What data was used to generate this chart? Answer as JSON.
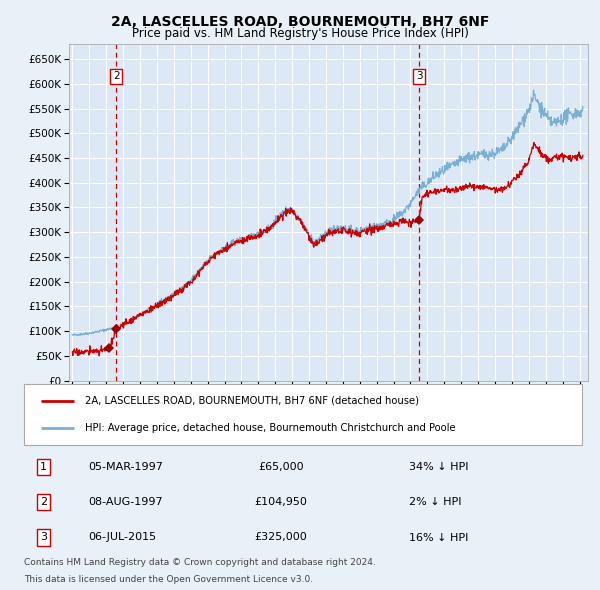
{
  "title": "2A, LASCELLES ROAD, BOURNEMOUTH, BH7 6NF",
  "subtitle": "Price paid vs. HM Land Registry's House Price Index (HPI)",
  "legend_property": "2A, LASCELLES ROAD, BOURNEMOUTH, BH7 6NF (detached house)",
  "legend_hpi": "HPI: Average price, detached house, Bournemouth Christchurch and Poole",
  "footer1": "Contains HM Land Registry data © Crown copyright and database right 2024.",
  "footer2": "This data is licensed under the Open Government Licence v3.0.",
  "table_rows": [
    {
      "num": "1",
      "date": "05-MAR-1997",
      "price": "£65,000",
      "pct": "34% ↓ HPI"
    },
    {
      "num": "2",
      "date": "08-AUG-1997",
      "price": "£104,950",
      "pct": "2% ↓ HPI"
    },
    {
      "num": "3",
      "date": "06-JUL-2015",
      "price": "£325,000",
      "pct": "16% ↓ HPI"
    }
  ],
  "vline1_x": 1997.6,
  "vline2_x": 2015.51,
  "t1_x": 1997.18,
  "t1_y": 65000,
  "t2_x": 1997.6,
  "t2_y": 104950,
  "t3_x": 2015.51,
  "t3_y": 325000,
  "ylim": [
    0,
    680000
  ],
  "xlim_start": 1994.8,
  "xlim_end": 2025.5,
  "background_color": "#e8f0f8",
  "plot_bg_color": "#dce8f5",
  "grid_color": "#ffffff",
  "property_line_color": "#cc0000",
  "hpi_line_color": "#7aafd4",
  "marker_color": "#990000",
  "vline_color": "#cc0000",
  "box_color": "#cc0000",
  "hpi_pts": [
    [
      1995.0,
      92000
    ],
    [
      1995.5,
      93500
    ],
    [
      1996.0,
      96000
    ],
    [
      1996.5,
      99000
    ],
    [
      1997.0,
      103000
    ],
    [
      1997.5,
      107000
    ],
    [
      1998.0,
      113000
    ],
    [
      1998.5,
      122000
    ],
    [
      1999.0,
      132000
    ],
    [
      1999.5,
      143000
    ],
    [
      2000.0,
      153000
    ],
    [
      2000.5,
      163000
    ],
    [
      2001.0,
      174000
    ],
    [
      2001.5,
      187000
    ],
    [
      2002.0,
      202000
    ],
    [
      2002.5,
      222000
    ],
    [
      2003.0,
      242000
    ],
    [
      2003.5,
      258000
    ],
    [
      2004.0,
      268000
    ],
    [
      2004.5,
      278000
    ],
    [
      2005.0,
      285000
    ],
    [
      2005.5,
      290000
    ],
    [
      2006.0,
      295000
    ],
    [
      2006.5,
      305000
    ],
    [
      2007.0,
      320000
    ],
    [
      2007.5,
      340000
    ],
    [
      2007.8,
      348000
    ],
    [
      2008.0,
      345000
    ],
    [
      2008.5,
      325000
    ],
    [
      2009.0,
      295000
    ],
    [
      2009.3,
      278000
    ],
    [
      2009.6,
      285000
    ],
    [
      2010.0,
      300000
    ],
    [
      2010.5,
      305000
    ],
    [
      2011.0,
      308000
    ],
    [
      2011.5,
      305000
    ],
    [
      2012.0,
      303000
    ],
    [
      2012.5,
      308000
    ],
    [
      2013.0,
      313000
    ],
    [
      2013.5,
      318000
    ],
    [
      2014.0,
      325000
    ],
    [
      2014.5,
      338000
    ],
    [
      2015.0,
      358000
    ],
    [
      2015.3,
      375000
    ],
    [
      2015.6,
      388000
    ],
    [
      2016.0,
      400000
    ],
    [
      2016.5,
      415000
    ],
    [
      2017.0,
      425000
    ],
    [
      2017.5,
      435000
    ],
    [
      2018.0,
      445000
    ],
    [
      2018.5,
      452000
    ],
    [
      2019.0,
      455000
    ],
    [
      2019.5,
      458000
    ],
    [
      2020.0,
      460000
    ],
    [
      2020.5,
      468000
    ],
    [
      2021.0,
      490000
    ],
    [
      2021.5,
      518000
    ],
    [
      2022.0,
      548000
    ],
    [
      2022.3,
      575000
    ],
    [
      2022.6,
      558000
    ],
    [
      2022.9,
      540000
    ],
    [
      2023.2,
      525000
    ],
    [
      2023.5,
      520000
    ],
    [
      2023.8,
      525000
    ],
    [
      2024.0,
      530000
    ],
    [
      2024.3,
      535000
    ],
    [
      2024.6,
      540000
    ],
    [
      2025.0,
      542000
    ],
    [
      2025.2,
      545000
    ]
  ],
  "prop_pts": [
    [
      1995.0,
      57000
    ],
    [
      1995.5,
      57500
    ],
    [
      1996.0,
      58500
    ],
    [
      1996.5,
      60000
    ],
    [
      1997.0,
      62000
    ],
    [
      1997.18,
      65000
    ],
    [
      1997.4,
      82000
    ],
    [
      1997.6,
      104950
    ],
    [
      1998.0,
      113000
    ],
    [
      1998.5,
      122000
    ],
    [
      1999.0,
      132000
    ],
    [
      1999.5,
      142000
    ],
    [
      2000.0,
      151000
    ],
    [
      2000.5,
      161000
    ],
    [
      2001.0,
      172000
    ],
    [
      2001.5,
      185000
    ],
    [
      2002.0,
      200000
    ],
    [
      2002.5,
      220000
    ],
    [
      2003.0,
      240000
    ],
    [
      2003.5,
      256000
    ],
    [
      2004.0,
      266000
    ],
    [
      2004.5,
      276000
    ],
    [
      2005.0,
      282000
    ],
    [
      2005.5,
      288000
    ],
    [
      2006.0,
      293000
    ],
    [
      2006.5,
      303000
    ],
    [
      2007.0,
      318000
    ],
    [
      2007.5,
      337000
    ],
    [
      2007.8,
      345000
    ],
    [
      2008.0,
      342000
    ],
    [
      2008.5,
      322000
    ],
    [
      2009.0,
      290000
    ],
    [
      2009.3,
      274000
    ],
    [
      2009.6,
      280000
    ],
    [
      2010.0,
      295000
    ],
    [
      2010.5,
      300000
    ],
    [
      2011.0,
      303000
    ],
    [
      2011.5,
      300000
    ],
    [
      2012.0,
      298000
    ],
    [
      2012.5,
      303000
    ],
    [
      2013.0,
      308000
    ],
    [
      2013.5,
      313000
    ],
    [
      2014.0,
      318000
    ],
    [
      2014.5,
      322000
    ],
    [
      2015.0,
      320000
    ],
    [
      2015.3,
      323000
    ],
    [
      2015.51,
      325000
    ],
    [
      2015.7,
      372000
    ],
    [
      2016.0,
      378000
    ],
    [
      2016.5,
      383000
    ],
    [
      2017.0,
      386000
    ],
    [
      2017.5,
      385000
    ],
    [
      2018.0,
      388000
    ],
    [
      2018.5,
      392000
    ],
    [
      2019.0,
      393000
    ],
    [
      2019.5,
      390000
    ],
    [
      2020.0,
      385000
    ],
    [
      2020.5,
      388000
    ],
    [
      2021.0,
      400000
    ],
    [
      2021.5,
      420000
    ],
    [
      2022.0,
      445000
    ],
    [
      2022.3,
      480000
    ],
    [
      2022.6,
      465000
    ],
    [
      2022.9,
      450000
    ],
    [
      2023.2,
      448000
    ],
    [
      2023.5,
      450000
    ],
    [
      2023.8,
      452000
    ],
    [
      2024.0,
      455000
    ],
    [
      2024.3,
      453000
    ],
    [
      2024.6,
      450000
    ],
    [
      2025.0,
      452000
    ],
    [
      2025.2,
      453000
    ]
  ]
}
